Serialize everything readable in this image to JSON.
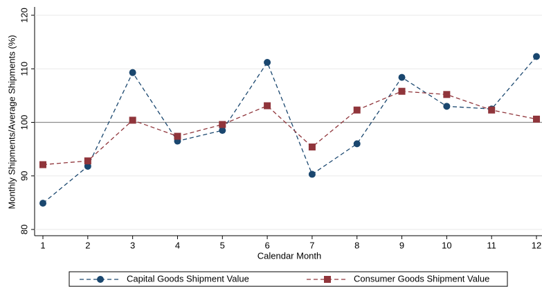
{
  "chart_data": {
    "type": "line",
    "x_label": "Calendar Month",
    "y_label": "Monthly Shipments/Average Shipments (%)",
    "x": [
      1,
      2,
      3,
      4,
      5,
      6,
      7,
      8,
      9,
      10,
      11,
      12
    ],
    "series": [
      {
        "name": "Capital Goods Shipment Value",
        "color": "#1a476f",
        "marker": "circle",
        "values": [
          84.9,
          91.8,
          109.3,
          96.5,
          98.5,
          111.2,
          90.3,
          96.0,
          108.4,
          103.0,
          102.5,
          112.3
        ]
      },
      {
        "name": "Consumer Goods Shipment Value",
        "color": "#90353b",
        "marker": "square",
        "values": [
          92.1,
          92.8,
          100.4,
          97.4,
          99.6,
          103.1,
          95.4,
          102.3,
          105.8,
          105.2,
          102.3,
          100.6
        ]
      }
    ],
    "xlim": [
      1,
      12
    ],
    "xticks": [
      1,
      2,
      3,
      4,
      5,
      6,
      7,
      8,
      9,
      10,
      11,
      12
    ],
    "ylim": [
      80,
      120
    ],
    "yticks": [
      80,
      90,
      100,
      110,
      120
    ],
    "yline": 100,
    "grid": true
  }
}
